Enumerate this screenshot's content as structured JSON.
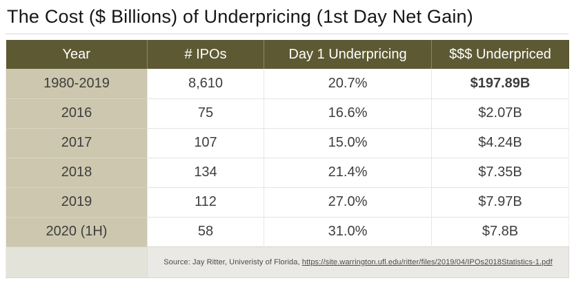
{
  "title": "The Cost ($ Billions) of Underpricing (1st Day Net Gain)",
  "table": {
    "columns": [
      "Year",
      "# IPOs",
      "Day 1 Underpricing",
      "$$$ Underpriced"
    ],
    "rows": [
      {
        "year": "1980-2019",
        "ipos": "8,610",
        "underpricing": "20.7%",
        "amount": "$197.89B",
        "bold_amount": true
      },
      {
        "year": "2016",
        "ipos": "75",
        "underpricing": "16.6%",
        "amount": "$2.07B",
        "bold_amount": false
      },
      {
        "year": "2017",
        "ipos": "107",
        "underpricing": "15.0%",
        "amount": "$4.24B",
        "bold_amount": false
      },
      {
        "year": "2018",
        "ipos": "134",
        "underpricing": "21.4%",
        "amount": "$7.35B",
        "bold_amount": false
      },
      {
        "year": "2019",
        "ipos": "112",
        "underpricing": "27.0%",
        "amount": "$7.97B",
        "bold_amount": false
      },
      {
        "year": "2020 (1H)",
        "ipos": "58",
        "underpricing": "31.0%",
        "amount": "$7.8B",
        "bold_amount": false
      }
    ],
    "source": {
      "prefix": "Source: Jay Ritter, Univeristy of Florida, ",
      "link_text": "https://site.warrington.ufl.edu/ritter/files/2019/04/IPOs2018Statistics-1.pdf",
      "link_href": "https://site.warrington.ufl.edu/ritter/files/2019/04/IPOs2018Statistics-1.pdf"
    }
  },
  "colors": {
    "header_bg": "#5d5a33",
    "header_text": "#ffffff",
    "year_col_bg": "#ccc7ae",
    "footer_bg": "#eae9e6",
    "footer_year_bg": "#e4e3da",
    "body_text": "#3d3d3d",
    "divider": "#e9e9e9"
  },
  "chart_data": {
    "type": "table",
    "title": "The Cost ($ Billions) of Underpricing (1st Day Net Gain)",
    "columns": [
      "Year",
      "# IPOs",
      "Day 1 Underpricing",
      "$$$ Underpriced"
    ],
    "rows": [
      [
        "1980-2019",
        8610,
        "20.7%",
        "$197.89B"
      ],
      [
        "2016",
        75,
        "16.6%",
        "$2.07B"
      ],
      [
        "2017",
        107,
        "15.0%",
        "$4.24B"
      ],
      [
        "2018",
        134,
        "21.4%",
        "$7.35B"
      ],
      [
        "2019",
        112,
        "27.0%",
        "$7.97B"
      ],
      [
        "2020 (1H)",
        58,
        "31.0%",
        "$7.8B"
      ]
    ],
    "source": "Source: Jay Ritter, Univeristy of Florida, https://site.warrington.ufl.edu/ritter/files/2019/04/IPOs2018Statistics-1.pdf"
  }
}
